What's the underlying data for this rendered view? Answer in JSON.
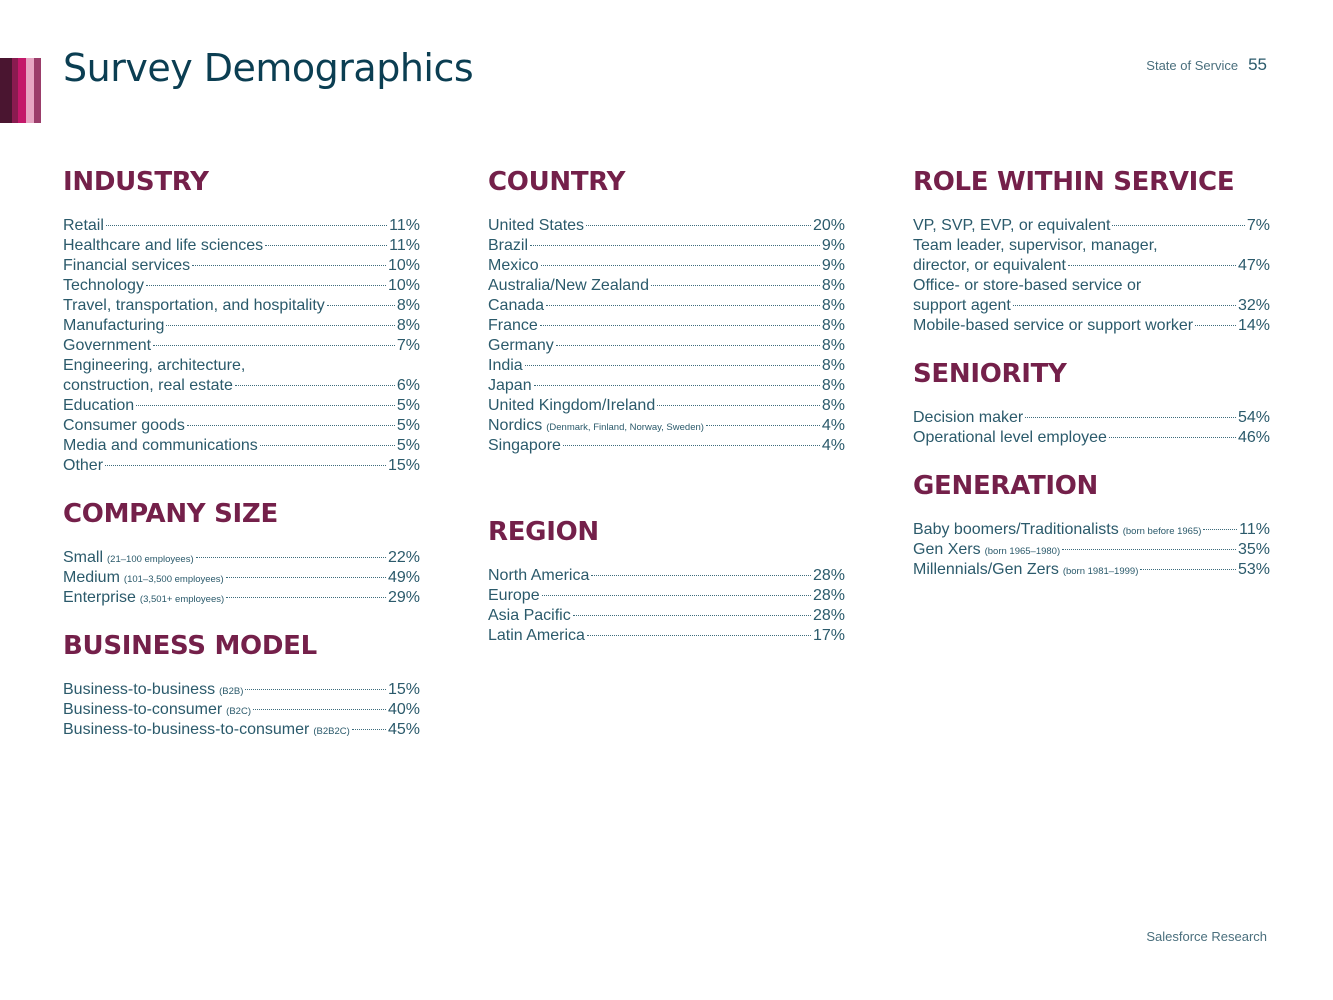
{
  "header": {
    "title": "Survey Demographics",
    "doc_name": "State of Service",
    "page_number": "55",
    "accent_colors": [
      "#4a1530",
      "#8a1b50",
      "#c4186a",
      "#e7a6c3",
      "#9b3d6a"
    ]
  },
  "footer": {
    "text": "Salesforce Research"
  },
  "sections": {
    "industry": {
      "title": "INDUSTRY",
      "rows": [
        {
          "label": "Retail",
          "value": "11%"
        },
        {
          "label": "Healthcare and life sciences",
          "value": "11%"
        },
        {
          "label": "Financial services",
          "value": "10%"
        },
        {
          "label": "Technology",
          "value": "10%"
        },
        {
          "label": "Travel, transportation, and hospitality",
          "value": "8%"
        },
        {
          "label": "Manufacturing",
          "value": "8%"
        },
        {
          "label": "Government",
          "value": "7%"
        },
        {
          "label_line1": "Engineering, architecture,",
          "label_line2": "construction, real estate",
          "value": "6%"
        },
        {
          "label": "Education",
          "value": "5%"
        },
        {
          "label": "Consumer goods",
          "value": "5%"
        },
        {
          "label": "Media and communications",
          "value": "5%"
        },
        {
          "label": "Other",
          "value": "15%"
        }
      ]
    },
    "company_size": {
      "title": "COMPANY SIZE",
      "rows": [
        {
          "label": "Small",
          "note": "(21–100 employees)",
          "value": "22%"
        },
        {
          "label": "Medium",
          "note": "(101–3,500 employees)",
          "value": "49%"
        },
        {
          "label": "Enterprise",
          "note": "(3,501+ employees)",
          "value": "29%"
        }
      ]
    },
    "business_model": {
      "title": "BUSINESS MODEL",
      "rows": [
        {
          "label": "Business-to-business",
          "note": "(B2B)",
          "value": "15%"
        },
        {
          "label": "Business-to-consumer",
          "note": "(B2C)",
          "value": "40%"
        },
        {
          "label": "Business-to-business-to-consumer",
          "note": "(B2B2C)",
          "value": "45%"
        }
      ]
    },
    "country": {
      "title": "COUNTRY",
      "rows": [
        {
          "label": "United States",
          "value": "20%"
        },
        {
          "label": "Brazil",
          "value": "9%"
        },
        {
          "label": "Mexico",
          "value": "9%"
        },
        {
          "label": "Australia/New Zealand",
          "value": "8%"
        },
        {
          "label": "Canada",
          "value": "8%"
        },
        {
          "label": "France",
          "value": "8%"
        },
        {
          "label": "Germany",
          "value": "8%"
        },
        {
          "label": "India",
          "value": "8%"
        },
        {
          "label": "Japan",
          "value": "8%"
        },
        {
          "label": "United Kingdom/Ireland",
          "value": "8%"
        },
        {
          "label": "Nordics",
          "note": "(Denmark, Finland, Norway, Sweden)",
          "value": "4%"
        },
        {
          "label": "Singapore",
          "value": "4%"
        }
      ]
    },
    "region": {
      "title": "REGION",
      "rows": [
        {
          "label": "North America",
          "value": "28%"
        },
        {
          "label": "Europe",
          "value": "28%"
        },
        {
          "label": "Asia Pacific",
          "value": "28%"
        },
        {
          "label": "Latin America",
          "value": "17%"
        }
      ]
    },
    "role": {
      "title": "ROLE WITHIN SERVICE",
      "rows": [
        {
          "label": "VP, SVP, EVP, or equivalent",
          "value": "7%"
        },
        {
          "label_line1": "Team leader, supervisor, manager,",
          "label_line2": "director, or equivalent",
          "value": "47%"
        },
        {
          "label_line1": "Office- or store-based service or",
          "label_line2": "support agent",
          "value": "32%"
        },
        {
          "label": "Mobile-based service or support worker",
          "value": "14%"
        }
      ]
    },
    "seniority": {
      "title": "SENIORITY",
      "rows": [
        {
          "label": "Decision maker",
          "value": "54%"
        },
        {
          "label": "Operational level employee",
          "value": "46%"
        }
      ]
    },
    "generation": {
      "title": "GENERATION",
      "rows": [
        {
          "label": "Baby boomers/Traditionalists",
          "note": "(born before 1965)",
          "value": "11%"
        },
        {
          "label": "Gen Xers",
          "note": "(born 1965–1980)",
          "value": "35%"
        },
        {
          "label": "Millennials/Gen Zers",
          "note": "(born 1981–1999)",
          "value": "53%"
        }
      ]
    }
  }
}
